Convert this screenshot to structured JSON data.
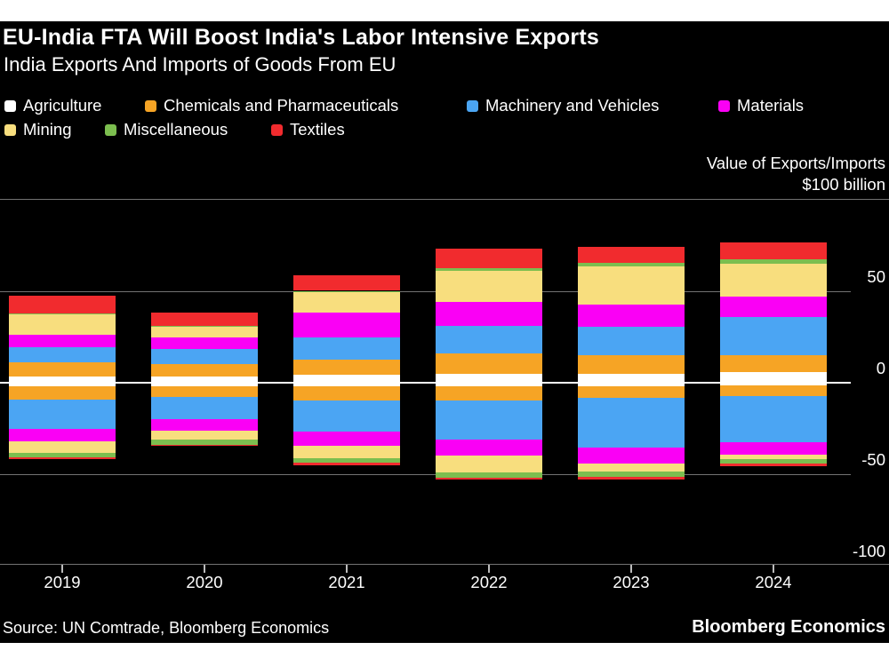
{
  "header": {
    "title": "EU-India FTA Will Boost India's Labor Intensive Exports",
    "subtitle": "India Exports And Imports of Goods From EU"
  },
  "axis": {
    "unit_line1": "Value of Exports/Imports",
    "unit_line2": "$100 billion",
    "y_tick_values": [
      50,
      0,
      -50,
      -100
    ],
    "y_tick_labels": [
      "50",
      "0",
      "-50",
      "-100"
    ]
  },
  "colors": {
    "panel_bg": "#000000",
    "page_bg": "#ffffff",
    "gridline": "#737373",
    "zero_line": "#ffffff",
    "text": "#ffffff"
  },
  "footer": {
    "source": "Source: UN Comtrade, Bloomberg Economics",
    "brand": "Bloomberg Economics"
  },
  "chart_data": {
    "type": "bar",
    "stacked": true,
    "title": "EU-India FTA Will Boost India's Labor Intensive Exports",
    "subtitle": "India Exports And Imports of Goods From EU",
    "unit_note": "Value of Exports/Imports $100 billion",
    "categories": [
      "2019",
      "2020",
      "2021",
      "2022",
      "2023",
      "2024"
    ],
    "ylim": [
      -100,
      100
    ],
    "y_gridlines": [
      50,
      0,
      -50
    ],
    "legend_position": "top",
    "grid": true,
    "series": [
      {
        "name": "Agriculture",
        "color": "#ffffff",
        "exports": [
          3,
          3,
          4,
          4.5,
          4.5,
          5.5
        ],
        "imports": [
          -2,
          -2,
          -2,
          -2,
          -2,
          -1.5
        ]
      },
      {
        "name": "Chemicals and Pharmaceuticals",
        "color": "#f6a425",
        "exports": [
          8,
          7,
          8.5,
          11.5,
          10.5,
          9.5
        ],
        "imports": [
          -7.5,
          -6,
          -8,
          -8,
          -6.5,
          -6
        ]
      },
      {
        "name": "Machinery and Vehicles",
        "color": "#4ba5f3",
        "exports": [
          8,
          8,
          12,
          15,
          15.5,
          20.5
        ],
        "imports": [
          -16,
          -12,
          -17,
          -21.5,
          -27,
          -25.5
        ]
      },
      {
        "name": "Materials",
        "color": "#fa00f5",
        "exports": [
          7,
          6.5,
          13.5,
          13,
          12,
          11.5
        ],
        "imports": [
          -7,
          -6.5,
          -7.5,
          -8.5,
          -9,
          -6.5
        ]
      },
      {
        "name": "Mining",
        "color": "#f8de7e",
        "exports": [
          11.5,
          6,
          11.5,
          17,
          21,
          18
        ],
        "imports": [
          -6,
          -5,
          -7,
          -9.5,
          -4.5,
          -2.5
        ]
      },
      {
        "name": "Miscellaneous",
        "color": "#7cbe4f",
        "exports": [
          0.3,
          0.3,
          0.5,
          1.5,
          2,
          2
        ],
        "imports": [
          -2.5,
          -2.5,
          -2.5,
          -2.5,
          -2.5,
          -2.5
        ]
      },
      {
        "name": "Textiles",
        "color": "#f12b2e",
        "exports": [
          9.5,
          7.5,
          8.5,
          10.5,
          8.5,
          9.5
        ],
        "imports": [
          -1,
          -0.5,
          -1.5,
          -1,
          -1.5,
          -1.5
        ]
      }
    ],
    "totals_exports": [
      47.3,
      38.3,
      58.5,
      73.0,
      74.0,
      76.5
    ],
    "totals_imports": [
      -42.0,
      -34.5,
      -45.5,
      -53.0,
      -53.0,
      -46.0
    ]
  }
}
